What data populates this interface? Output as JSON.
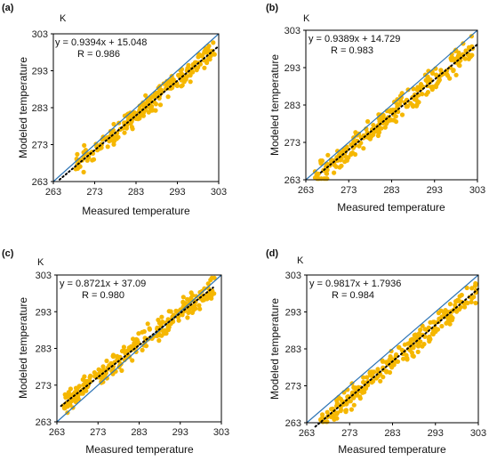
{
  "colors": {
    "points": "#F5B700",
    "identity_line": "#2E75B6",
    "trend_line": "#000000",
    "frame": "#000000"
  },
  "chart_data": [
    {
      "type": "scatter",
      "panel_label": "(a)",
      "unit": "K",
      "xlabel": "Measured temperature",
      "ylabel": "Modeled temperature",
      "xlim": [
        263,
        303
      ],
      "ylim": [
        263,
        303
      ],
      "xticks": [
        "263",
        "273",
        "283",
        "293",
        "303"
      ],
      "yticks": [
        "263",
        "273",
        "283",
        "293",
        "303"
      ],
      "equation": "y = 0.9394x + 15.048",
      "r_text": "R = 0.986",
      "fit": {
        "slope": 0.9394,
        "intercept": 15.048,
        "x_range": [
          264.5,
          303
        ]
      },
      "identity_line": true,
      "seed": 11,
      "n": 240,
      "x_range": [
        268,
        302
      ],
      "noise": 1.6
    },
    {
      "type": "scatter",
      "panel_label": "(b)",
      "unit": "K",
      "xlabel": "Measured temperature",
      "ylabel": "Modeled temperature",
      "xlim": [
        263,
        303
      ],
      "ylim": [
        263,
        303
      ],
      "xticks": [
        "263",
        "273",
        "283",
        "293",
        "303"
      ],
      "yticks": [
        "263",
        "273",
        "283",
        "293",
        "303"
      ],
      "equation": "y = 0.9389x + 14.729",
      "r_text": "R = 0.983",
      "fit": {
        "slope": 0.9389,
        "intercept": 14.729,
        "x_range": [
          266.5,
          303
        ]
      },
      "identity_line": true,
      "seed": 23,
      "n": 260,
      "x_range": [
        265,
        302
      ],
      "noise": 2.0
    },
    {
      "type": "scatter",
      "panel_label": "(c)",
      "unit": "K",
      "xlabel": "Measured temperature",
      "ylabel": "Modeled temperature",
      "xlim": [
        263,
        303
      ],
      "ylim": [
        263,
        303
      ],
      "xticks": [
        "263",
        "273",
        "283",
        "293",
        "303"
      ],
      "yticks": [
        "263",
        "273",
        "283",
        "293",
        "303"
      ],
      "equation": "y = 0.8721x + 37.09",
      "r_text": "R = 0.980",
      "fit": {
        "slope": 0.8721,
        "intercept": 37.09,
        "x_range": [
          264,
          301
        ]
      },
      "identity_line": true,
      "seed": 37,
      "n": 260,
      "x_range": [
        264.5,
        301.5
      ],
      "noise": 1.8
    },
    {
      "type": "scatter",
      "panel_label": "(d)",
      "unit": "K",
      "xlabel": "Measured temperature",
      "ylabel": "Modeled temperature",
      "xlim": [
        263,
        303
      ],
      "ylim": [
        263,
        303
      ],
      "xticks": [
        "263",
        "273",
        "283",
        "293",
        "303"
      ],
      "yticks": [
        "263",
        "273",
        "283",
        "293",
        "303"
      ],
      "equation": "y = 0.9817x + 1.7936",
      "r_text": "R = 0.984",
      "fit": {
        "slope": 0.9817,
        "intercept": 1.7936,
        "x_range": [
          265,
          303
        ]
      },
      "identity_line": true,
      "seed": 53,
      "n": 260,
      "x_range": [
        266,
        302.5
      ],
      "noise": 1.9
    }
  ]
}
